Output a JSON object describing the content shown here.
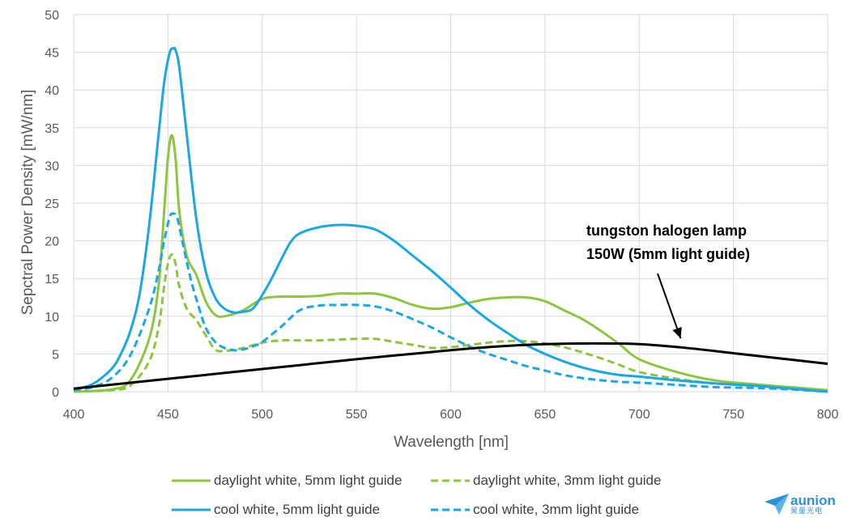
{
  "chart_data": {
    "type": "line",
    "title": "",
    "xlabel": "Wavelength [nm]",
    "ylabel": "Sepctral Power Density [mW/nm]",
    "xlim": [
      400,
      800
    ],
    "ylim": [
      0,
      50
    ],
    "xticks": [
      400,
      450,
      500,
      550,
      600,
      650,
      700,
      750,
      800
    ],
    "yticks": [
      0,
      5,
      10,
      15,
      20,
      25,
      30,
      35,
      40,
      45,
      50
    ],
    "grid": "vertical and horizontal",
    "legend_position": "bottom",
    "series": [
      {
        "name": "daylight white, 5mm light guide",
        "color": "#8cc63f",
        "dash": "solid",
        "x": [
          400,
          420,
          430,
          440,
          445,
          448,
          450,
          452,
          454,
          456,
          460,
          465,
          470,
          475,
          480,
          490,
          500,
          510,
          520,
          530,
          540,
          550,
          560,
          570,
          580,
          590,
          600,
          610,
          620,
          630,
          640,
          650,
          660,
          670,
          680,
          690,
          700,
          720,
          740,
          760,
          780,
          800
        ],
        "y": [
          0,
          0.3,
          1.5,
          7,
          14,
          24,
          31,
          34,
          31,
          24,
          18,
          15.5,
          12,
          10.2,
          10,
          10.8,
          12.3,
          12.6,
          12.6,
          12.7,
          13,
          13,
          13,
          12.4,
          11.5,
          11,
          11.2,
          11.8,
          12.3,
          12.5,
          12.5,
          12,
          10.8,
          9.6,
          8,
          6.2,
          4.3,
          2.6,
          1.5,
          1,
          0.6,
          0.2
        ]
      },
      {
        "name": "daylight white, 3mm light guide",
        "color": "#8cc63f",
        "dash": "dashed",
        "x": [
          400,
          420,
          430,
          440,
          445,
          448,
          450,
          452,
          454,
          456,
          460,
          465,
          470,
          475,
          480,
          490,
          500,
          510,
          520,
          530,
          540,
          550,
          560,
          570,
          580,
          590,
          600,
          610,
          620,
          630,
          640,
          650,
          660,
          670,
          680,
          690,
          700,
          720,
          740,
          760,
          780,
          800
        ],
        "y": [
          0,
          0.2,
          0.8,
          4,
          8.5,
          14,
          17,
          18.2,
          17,
          14,
          11,
          9.5,
          7.5,
          5.6,
          5.4,
          5.8,
          6.5,
          6.8,
          6.8,
          6.8,
          6.9,
          7,
          7,
          6.6,
          6.2,
          5.8,
          5.9,
          6.2,
          6.5,
          6.7,
          6.7,
          6.4,
          5.9,
          5.2,
          4.4,
          3.5,
          2.6,
          1.7,
          1.1,
          0.8,
          0.5,
          0.2
        ]
      },
      {
        "name": "cool white, 5mm light guide",
        "color": "#1aa7e6",
        "dash": "solid",
        "x": [
          400,
          410,
          420,
          425,
          430,
          435,
          440,
          445,
          448,
          451,
          453,
          454,
          456,
          460,
          465,
          470,
          475,
          480,
          485,
          490,
          495,
          500,
          505,
          510,
          515,
          520,
          530,
          540,
          550,
          560,
          570,
          580,
          590,
          600,
          610,
          620,
          630,
          640,
          650,
          660,
          670,
          680,
          690,
          700,
          720,
          740,
          760,
          780,
          800
        ],
        "y": [
          0.3,
          1,
          3,
          5,
          8,
          13,
          22,
          34,
          41,
          45,
          45.5,
          45.3,
          43,
          34,
          23,
          16,
          12.5,
          11,
          10.5,
          10.6,
          11,
          12.8,
          15,
          17.5,
          19.8,
          21,
          21.8,
          22.1,
          22,
          21.5,
          20,
          18,
          16,
          13.8,
          11.5,
          9.5,
          7.8,
          6.2,
          5,
          4,
          3.2,
          2.6,
          2.2,
          2,
          1.5,
          1.1,
          0.8,
          0.4,
          0
        ]
      },
      {
        "name": "cool white, 3mm light guide",
        "color": "#1aa7e6",
        "dash": "dashed",
        "x": [
          400,
          410,
          420,
          430,
          440,
          445,
          448,
          451,
          453,
          455,
          458,
          462,
          466,
          470,
          475,
          480,
          485,
          490,
          495,
          500,
          510,
          520,
          530,
          540,
          550,
          560,
          570,
          580,
          590,
          600,
          610,
          620,
          630,
          640,
          650,
          660,
          670,
          680,
          690,
          700,
          720,
          740,
          760,
          780,
          800
        ],
        "y": [
          0.2,
          0.6,
          1.8,
          4.8,
          11,
          16,
          20,
          23.2,
          23.6,
          23,
          19.5,
          15,
          11.5,
          8.5,
          6.6,
          5.8,
          5.5,
          5.6,
          6,
          6.6,
          8.6,
          10.8,
          11.4,
          11.5,
          11.5,
          11.3,
          10.6,
          9.6,
          8.5,
          7.2,
          6,
          5,
          4.2,
          3.4,
          2.8,
          2.2,
          1.8,
          1.5,
          1.3,
          1.2,
          0.9,
          0.6,
          0.5,
          0.3,
          0
        ]
      },
      {
        "name": "tungsten halogen lamp 150W (5mm light guide)",
        "color": "#000000",
        "dash": "solid",
        "x": [
          400,
          450,
          500,
          550,
          600,
          625,
          650,
          675,
          700,
          725,
          750,
          775,
          800
        ],
        "y": [
          0.4,
          1.7,
          3,
          4.3,
          5.5,
          6,
          6.3,
          6.4,
          6.3,
          5.8,
          5.1,
          4.4,
          3.7
        ]
      }
    ],
    "annotation": {
      "line1": "tungston halogen lamp",
      "line2": "150W (5mm light guide)",
      "arrow_to": [
        722,
        6.2
      ]
    }
  },
  "legend": {
    "items": [
      {
        "label": "daylight white, 5mm light guide",
        "color": "#8cc63f",
        "dash": "solid"
      },
      {
        "label": "daylight white, 3mm light guide",
        "color": "#8cc63f",
        "dash": "dashed"
      },
      {
        "label": "cool white, 5mm light guide",
        "color": "#1aa7e6",
        "dash": "solid"
      },
      {
        "label": "cool white, 3mm light guide",
        "color": "#1aa7e6",
        "dash": "dashed"
      }
    ]
  },
  "logo": {
    "text": "aunion",
    "sub": "昊量光电",
    "color": "#2f8fd8"
  }
}
